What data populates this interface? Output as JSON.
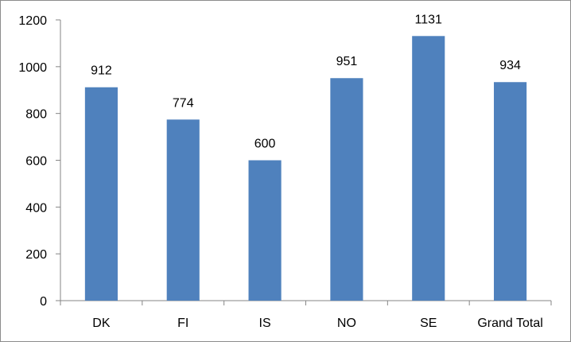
{
  "chart_data": {
    "type": "bar",
    "title": "",
    "xlabel": "",
    "ylabel": "",
    "categories": [
      "DK",
      "FI",
      "IS",
      "NO",
      "SE",
      "Grand Total"
    ],
    "values": [
      912,
      774,
      600,
      951,
      1131,
      934
    ],
    "data_labels": [
      "912",
      "774",
      "600",
      "951",
      "1131",
      "934"
    ],
    "ylim": [
      0,
      1200
    ],
    "yticks": [
      0,
      200,
      400,
      600,
      800,
      1000,
      1200
    ],
    "ytick_labels": [
      "0",
      "200",
      "400",
      "600",
      "800",
      "1000",
      "1200"
    ],
    "grid": false,
    "legend": "none",
    "bar_color": "#4f81bd",
    "axis_color": "#868686"
  }
}
